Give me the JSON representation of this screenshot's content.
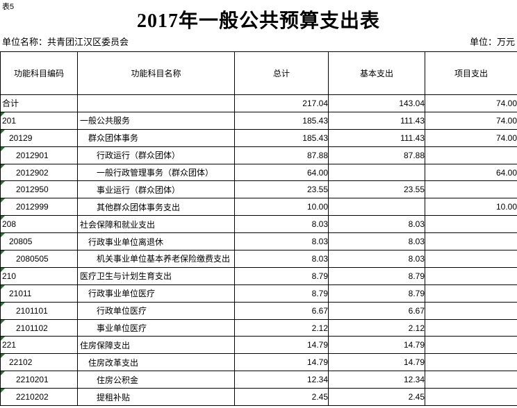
{
  "meta": {
    "sheet_label": "表5",
    "title": "2017年一般公共预算支出表",
    "unit_name_label": "单位名称：共青团江汉区委员会",
    "unit_label": "单位：万元"
  },
  "colors": {
    "flag_triangle": "#128012",
    "grid_line": "#000000",
    "background": "#ffffff"
  },
  "table": {
    "columns": [
      "功能科目编码",
      "功能科目名称",
      "总计",
      "基本支出",
      "项目支出"
    ],
    "rows": [
      {
        "code": "合计",
        "name": "",
        "total": "217.04",
        "basic": "143.04",
        "project": "74.00",
        "level": 0,
        "flagged": false
      },
      {
        "code": "201",
        "name": "一般公共服务",
        "total": "185.43",
        "basic": "111.43",
        "project": "74.00",
        "level": 0,
        "flagged": true
      },
      {
        "code": "20129",
        "name": "群众团体事务",
        "total": "185.43",
        "basic": "111.43",
        "project": "74.00",
        "level": 1,
        "flagged": true
      },
      {
        "code": "2012901",
        "name": "行政运行（群众团体）",
        "total": "87.88",
        "basic": "87.88",
        "project": "",
        "level": 2,
        "flagged": true
      },
      {
        "code": "2012902",
        "name": "一般行政管理事务（群众团体）",
        "total": "64.00",
        "basic": "",
        "project": "64.00",
        "level": 2,
        "flagged": true
      },
      {
        "code": "2012950",
        "name": "事业运行（群众团体）",
        "total": "23.55",
        "basic": "23.55",
        "project": "",
        "level": 2,
        "flagged": true
      },
      {
        "code": "2012999",
        "name": "其他群众团体事务支出",
        "total": "10.00",
        "basic": "",
        "project": "10.00",
        "level": 2,
        "flagged": true
      },
      {
        "code": "208",
        "name": "社会保障和就业支出",
        "total": "8.03",
        "basic": "8.03",
        "project": "",
        "level": 0,
        "flagged": true
      },
      {
        "code": "20805",
        "name": "行政事业单位离退休",
        "total": "8.03",
        "basic": "8.03",
        "project": "",
        "level": 1,
        "flagged": true
      },
      {
        "code": "2080505",
        "name": "机关事业单位基本养老保险缴费支出",
        "total": "8.03",
        "basic": "8.03",
        "project": "",
        "level": 2,
        "flagged": true
      },
      {
        "code": "210",
        "name": "医疗卫生与计划生育支出",
        "total": "8.79",
        "basic": "8.79",
        "project": "",
        "level": 0,
        "flagged": true
      },
      {
        "code": "21011",
        "name": "行政事业单位医疗",
        "total": "8.79",
        "basic": "8.79",
        "project": "",
        "level": 1,
        "flagged": true
      },
      {
        "code": "2101101",
        "name": "行政单位医疗",
        "total": "6.67",
        "basic": "6.67",
        "project": "",
        "level": 2,
        "flagged": true
      },
      {
        "code": "2101102",
        "name": "事业单位医疗",
        "total": "2.12",
        "basic": "2.12",
        "project": "",
        "level": 2,
        "flagged": true
      },
      {
        "code": "221",
        "name": "住房保障支出",
        "total": "14.79",
        "basic": "14.79",
        "project": "",
        "level": 0,
        "flagged": true
      },
      {
        "code": "22102",
        "name": "住房改革支出",
        "total": "14.79",
        "basic": "14.79",
        "project": "",
        "level": 1,
        "flagged": true
      },
      {
        "code": "2210201",
        "name": "住房公积金",
        "total": "12.34",
        "basic": "12.34",
        "project": "",
        "level": 2,
        "flagged": true
      },
      {
        "code": "2210202",
        "name": "提租补贴",
        "total": "2.45",
        "basic": "2.45",
        "project": "",
        "level": 2,
        "flagged": true
      }
    ]
  }
}
